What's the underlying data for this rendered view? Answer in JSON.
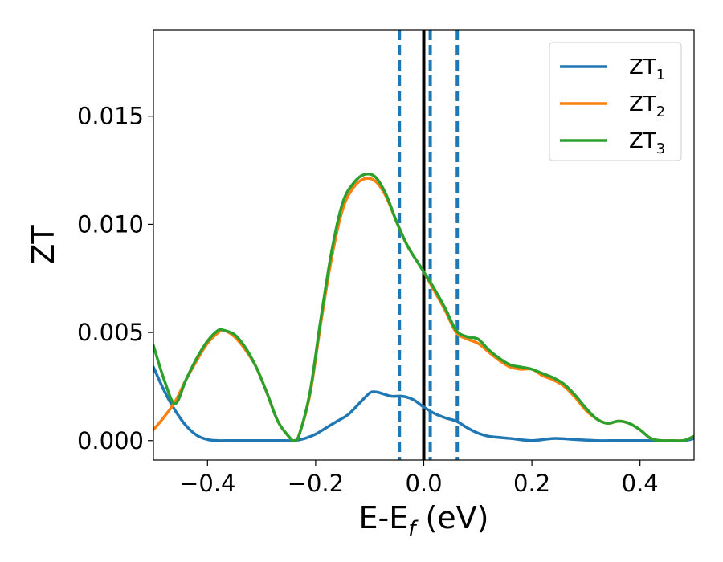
{
  "chart_data": {
    "type": "line",
    "title": "",
    "xlabel": "E-E",
    "xlabel_sub": "f",
    "xlabel_unit": " (eV)",
    "ylabel": "ZT",
    "xlim": [
      -0.5,
      0.5
    ],
    "ylim": [
      -0.0009,
      0.019
    ],
    "xticks": [
      -0.4,
      -0.2,
      0.0,
      0.2,
      0.4
    ],
    "xtick_labels": [
      "−0.4",
      "−0.2",
      "0.0",
      "0.2",
      "0.4"
    ],
    "yticks": [
      0.0,
      0.005,
      0.01,
      0.015
    ],
    "ytick_labels": [
      "0.000",
      "0.005",
      "0.010",
      "0.015"
    ],
    "grid": false,
    "legend": "top-right",
    "vlines": [
      {
        "x": 0.0,
        "style": "solid",
        "color": "#000000"
      },
      {
        "x": -0.045,
        "style": "dashed",
        "color": "#1f77b4"
      },
      {
        "x": 0.012,
        "style": "dashed",
        "color": "#1f77b4"
      },
      {
        "x": 0.062,
        "style": "dashed",
        "color": "#1f77b4"
      }
    ],
    "series": [
      {
        "name": "ZT",
        "sub": "1",
        "color": "#1f77b4",
        "x": [
          -0.5,
          -0.48,
          -0.46,
          -0.44,
          -0.42,
          -0.4,
          -0.38,
          -0.36,
          -0.34,
          -0.3,
          -0.26,
          -0.24,
          -0.22,
          -0.2,
          -0.18,
          -0.16,
          -0.14,
          -0.12,
          -0.1,
          -0.09,
          -0.08,
          -0.06,
          -0.04,
          -0.02,
          0.0,
          0.02,
          0.04,
          0.06,
          0.08,
          0.1,
          0.12,
          0.16,
          0.2,
          0.24,
          0.28,
          0.32,
          0.36,
          0.4,
          0.44,
          0.48,
          0.5
        ],
        "y": [
          0.0034,
          0.0023,
          0.0014,
          0.0007,
          0.00025,
          5e-05,
          0.0,
          0.0,
          0.0,
          0.0,
          0.0,
          0.0,
          0.0001,
          0.0003,
          0.0006,
          0.0009,
          0.0012,
          0.0017,
          0.0022,
          0.00225,
          0.0022,
          0.00205,
          0.00205,
          0.0019,
          0.00155,
          0.00125,
          0.00105,
          0.0009,
          0.0006,
          0.00035,
          0.0002,
          0.0001,
          0.0,
          0.0001,
          5e-05,
          0.0,
          0.0,
          0.0,
          0.0,
          0.0,
          0.0001
        ]
      },
      {
        "name": "ZT",
        "sub": "2",
        "color": "#ff7f0e",
        "x": [
          -0.5,
          -0.48,
          -0.46,
          -0.44,
          -0.42,
          -0.4,
          -0.38,
          -0.37,
          -0.35,
          -0.33,
          -0.31,
          -0.29,
          -0.27,
          -0.25,
          -0.24,
          -0.23,
          -0.21,
          -0.19,
          -0.17,
          -0.15,
          -0.13,
          -0.11,
          -0.09,
          -0.07,
          -0.05,
          -0.03,
          -0.01,
          0.0,
          0.02,
          0.04,
          0.06,
          0.08,
          0.1,
          0.12,
          0.14,
          0.16,
          0.18,
          0.2,
          0.22,
          0.24,
          0.26,
          0.28,
          0.3,
          0.32,
          0.34,
          0.36,
          0.38,
          0.4,
          0.42,
          0.44,
          0.46,
          0.48,
          0.5
        ],
        "y": [
          0.0005,
          0.0011,
          0.0018,
          0.0028,
          0.0037,
          0.0045,
          0.005,
          0.0051,
          0.0048,
          0.0042,
          0.0034,
          0.0022,
          0.0009,
          0.0002,
          0.0,
          0.0003,
          0.0022,
          0.0055,
          0.0085,
          0.0107,
          0.0117,
          0.0121,
          0.012,
          0.0113,
          0.0101,
          0.009,
          0.0082,
          0.0078,
          0.0069,
          0.006,
          0.005,
          0.0047,
          0.0045,
          0.0041,
          0.0037,
          0.0034,
          0.0033,
          0.0033,
          0.003,
          0.0028,
          0.0025,
          0.002,
          0.0014,
          0.001,
          0.0008,
          0.0009,
          0.0008,
          0.0005,
          0.0001,
          0.0,
          0.0,
          0.0,
          0.0002
        ]
      },
      {
        "name": "ZT",
        "sub": "3",
        "color": "#2ca02c",
        "x": [
          -0.5,
          -0.48,
          -0.46,
          -0.44,
          -0.42,
          -0.4,
          -0.38,
          -0.37,
          -0.35,
          -0.33,
          -0.31,
          -0.29,
          -0.27,
          -0.25,
          -0.24,
          -0.23,
          -0.21,
          -0.19,
          -0.17,
          -0.15,
          -0.13,
          -0.11,
          -0.09,
          -0.07,
          -0.05,
          -0.03,
          -0.01,
          0.0,
          0.02,
          0.04,
          0.06,
          0.08,
          0.1,
          0.12,
          0.14,
          0.16,
          0.18,
          0.2,
          0.22,
          0.24,
          0.26,
          0.28,
          0.3,
          0.32,
          0.34,
          0.36,
          0.38,
          0.4,
          0.42,
          0.44,
          0.46,
          0.48,
          0.5
        ],
        "y": [
          0.0044,
          0.0028,
          0.0017,
          0.0028,
          0.0038,
          0.0046,
          0.0051,
          0.0051,
          0.0049,
          0.0043,
          0.0034,
          0.0022,
          0.0009,
          0.0002,
          0.0,
          0.0003,
          0.0023,
          0.0057,
          0.0088,
          0.011,
          0.0119,
          0.0123,
          0.0122,
          0.0114,
          0.0101,
          0.009,
          0.0082,
          0.0078,
          0.007,
          0.0061,
          0.0051,
          0.0048,
          0.0047,
          0.0042,
          0.0038,
          0.0035,
          0.0034,
          0.0033,
          0.0031,
          0.0029,
          0.0026,
          0.0021,
          0.0015,
          0.001,
          0.0008,
          0.0009,
          0.0008,
          0.0005,
          0.0001,
          0.0,
          0.0,
          0.0,
          0.0002
        ]
      }
    ]
  }
}
